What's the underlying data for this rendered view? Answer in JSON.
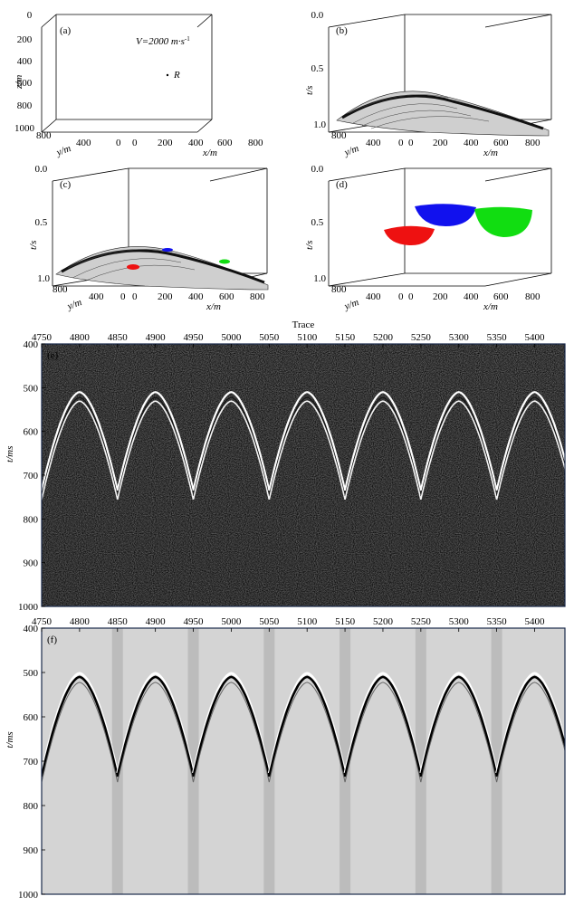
{
  "figure": {
    "panels_3d": [
      {
        "id": "a",
        "label": "(a)",
        "zlabel": "z/m",
        "zticks": [
          "0",
          "200",
          "400",
          "600",
          "800",
          "1000"
        ],
        "xlabel": "x/m",
        "xticks": [
          "0",
          "200",
          "400",
          "600",
          "800"
        ],
        "ylabel": "y/m",
        "yticks": [
          "800",
          "400",
          "0"
        ],
        "velocity_label": "V=2000 m·s",
        "velocity_sup": "-1",
        "point_label": "R"
      },
      {
        "id": "b",
        "label": "(b)",
        "zlabel": "t/s",
        "zticks": [
          "0.0",
          "0.5",
          "1.0"
        ],
        "xlabel": "x/m",
        "xticks": [
          "0",
          "200",
          "400",
          "600",
          "800"
        ],
        "ylabel": "y/m",
        "yticks": [
          "800",
          "400",
          "0"
        ]
      },
      {
        "id": "c",
        "label": "(c)",
        "zlabel": "t/s",
        "zticks": [
          "0.0",
          "0.5",
          "1.0"
        ],
        "xlabel": "x/m",
        "xticks": [
          "0",
          "200",
          "400",
          "600",
          "800"
        ],
        "ylabel": "y/m",
        "yticks": [
          "800",
          "400",
          "0"
        ]
      },
      {
        "id": "d",
        "label": "(d)",
        "zlabel": "t/s",
        "zticks": [
          "0.0",
          "0.5",
          "1.0"
        ],
        "xlabel": "x/m",
        "xticks": [
          "0",
          "200",
          "400",
          "600",
          "800"
        ],
        "ylabel": "y/m",
        "yticks": [
          "800",
          "400",
          "0"
        ]
      }
    ],
    "colors": {
      "red": "#ee1111",
      "blue": "#1111ee",
      "green": "#11dd11",
      "mesh": "#222222"
    }
  },
  "chart_data": [
    {
      "type": "heatmap",
      "panel": "(e)",
      "xlabel": "Trace",
      "ylabel": "t/ms",
      "x_ticks": [
        4750,
        4800,
        4850,
        4900,
        4950,
        5000,
        5050,
        5100,
        5150,
        5200,
        5250,
        5300,
        5350,
        5400
      ],
      "x_range": [
        4750,
        5440
      ],
      "y_ticks": [
        400,
        500,
        600,
        700,
        800,
        900,
        1000
      ],
      "y_range": [
        400,
        1000
      ],
      "hyperbola_apex_traces": [
        4800,
        4900,
        5000,
        5100,
        5200,
        5300,
        5400
      ],
      "apex_time_ms": 510,
      "edge_time_ms": 735,
      "half_width_traces": 50,
      "background": "random noise"
    },
    {
      "type": "heatmap",
      "panel": "(f)",
      "xlabel": "",
      "ylabel": "t/ms",
      "x_ticks": [
        4750,
        4800,
        4850,
        4900,
        4950,
        5000,
        5050,
        5100,
        5150,
        5200,
        5250,
        5300,
        5350,
        5400
      ],
      "x_range": [
        4750,
        5440
      ],
      "y_ticks": [
        400,
        500,
        600,
        700,
        800,
        900,
        1000
      ],
      "y_range": [
        400,
        1000
      ],
      "hyperbola_apex_traces": [
        4800,
        4900,
        5000,
        5100,
        5200,
        5300,
        5400
      ],
      "apex_time_ms": 510,
      "edge_time_ms": 735,
      "half_width_traces": 50,
      "background": "smooth grey"
    }
  ]
}
